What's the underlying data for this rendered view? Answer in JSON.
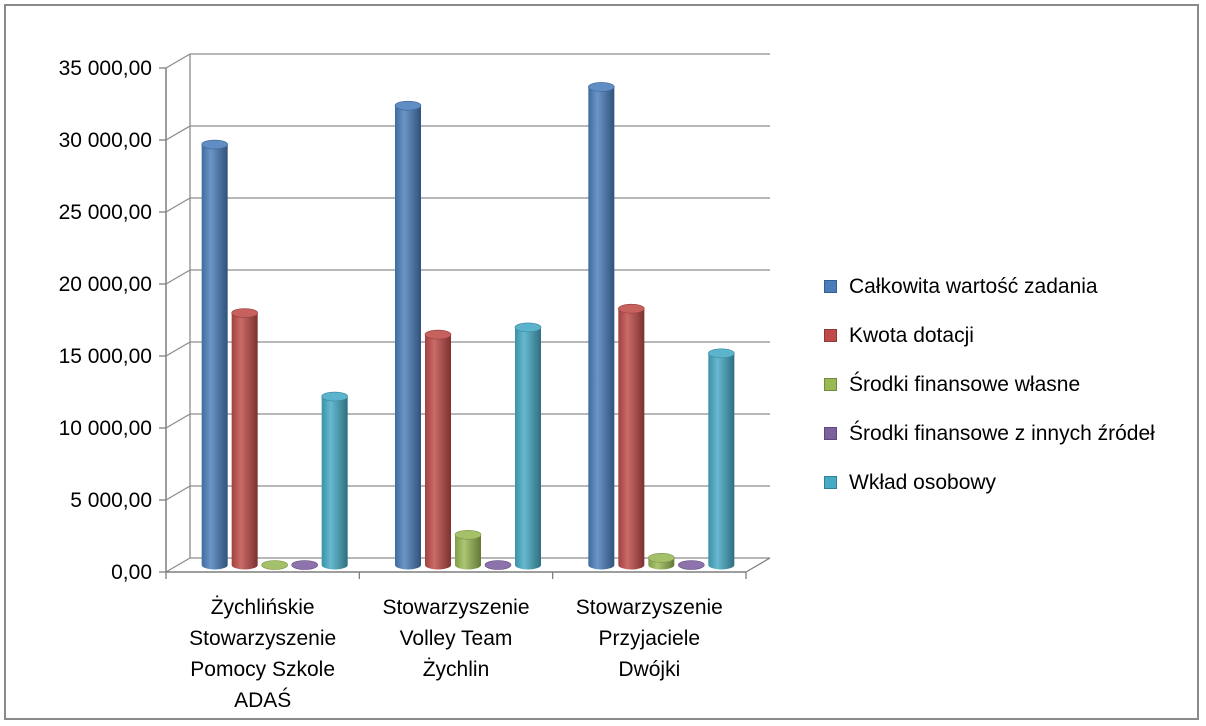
{
  "chart_data": {
    "type": "bar",
    "style": "3d-cylinder-clustered",
    "categories": [
      [
        "Żychlińskie",
        "Stowarzyszenie",
        "Pomocy Szkole",
        "ADAŚ"
      ],
      [
        "Stowarzyszenie",
        "Volley Team",
        "Żychlin"
      ],
      [
        "Stowarzyszenie",
        "Przyjaciele",
        "Dwójki"
      ]
    ],
    "series": [
      {
        "name": "Całkowita wartość zadania",
        "color": "#4a7ebb",
        "values": [
          29200,
          31900,
          33200
        ]
      },
      {
        "name": "Kwota dotacji",
        "color": "#be4b48",
        "values": [
          17500,
          16000,
          17800
        ]
      },
      {
        "name": "Środki finansowe własne",
        "color": "#98b954",
        "values": [
          0,
          2100,
          500
        ]
      },
      {
        "name": "Środki finansowe z innych źródeł",
        "color": "#7d60a0",
        "values": [
          0,
          0,
          0
        ]
      },
      {
        "name": "Wkład osobowy",
        "color": "#46aac5",
        "values": [
          11700,
          16500,
          14700
        ]
      }
    ],
    "yticks": [
      "0,00",
      "5 000,00",
      "10 000,00",
      "15 000,00",
      "20 000,00",
      "25 000,00",
      "30 000,00",
      "35 000,00"
    ],
    "ylim": [
      0,
      35000
    ],
    "grid": true,
    "legend_position": "right"
  }
}
